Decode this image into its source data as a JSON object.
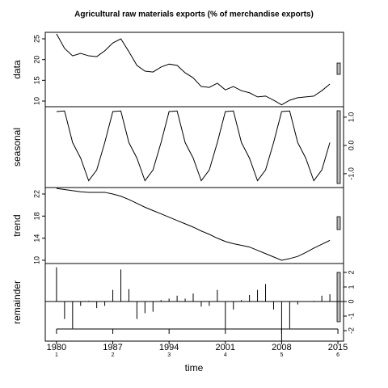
{
  "title": "Agricultural raw materials exports (% of merchandise exports)",
  "axis": {
    "xlabel": "time",
    "x": [
      1980,
      1981,
      1982,
      1983,
      1984,
      1985,
      1986,
      1987,
      1988,
      1989,
      1990,
      1991,
      1992,
      1993,
      1994,
      1995,
      1996,
      1997,
      1998,
      1999,
      2000,
      2001,
      2002,
      2003,
      2004,
      2005,
      2006,
      2007,
      2008,
      2009,
      2010,
      2011,
      2012,
      2013,
      2014
    ],
    "xlim": [
      1978.6,
      2015.7
    ],
    "xticks": [
      1980,
      1987,
      1994,
      2001,
      2008,
      2015
    ],
    "cycle_labels": [
      "1",
      "2",
      "3",
      "4",
      "5",
      "6"
    ]
  },
  "chart_data": [
    {
      "type": "line",
      "ylabel": "data",
      "side": "left",
      "ylim": [
        8.64,
        26.56
      ],
      "yticks": [
        10,
        15,
        20,
        25
      ],
      "values": [
        26.2,
        22.7,
        20.9,
        21.5,
        20.9,
        20.7,
        22.1,
        24.0,
        25.0,
        21.9,
        18.6,
        17.2,
        17.0,
        18.2,
        18.9,
        18.6,
        16.8,
        15.6,
        13.5,
        13.3,
        14.3,
        12.7,
        13.5,
        12.5,
        12.0,
        11.0,
        11.2,
        10.2,
        9.1,
        10.2,
        10.8,
        11.0,
        11.2,
        12.5,
        14.1
      ]
    },
    {
      "type": "line",
      "ylabel": "seasonal",
      "side": "right",
      "ylim": [
        -1.49,
        1.37
      ],
      "yticks": [
        {
          "value": -1,
          "label": "-1.0"
        },
        {
          "value": 0,
          "label": "0.0"
        },
        {
          "value": 1,
          "label": "1.0"
        }
      ],
      "values": [
        1.2,
        1.22,
        0.1,
        -0.45,
        -1.25,
        -0.87,
        0.1,
        1.2,
        1.22,
        0.1,
        -0.45,
        -1.25,
        -0.87,
        0.1,
        1.2,
        1.22,
        0.1,
        -0.45,
        -1.25,
        -0.87,
        0.1,
        1.2,
        1.22,
        0.1,
        -0.45,
        -1.25,
        -0.87,
        0.1,
        1.2,
        1.22,
        0.1,
        -0.45,
        -1.25,
        -0.87,
        0.1
      ]
    },
    {
      "type": "line",
      "ylabel": "trend",
      "side": "left",
      "ylim": [
        9.41,
        23.17
      ],
      "yticks": [
        10,
        14,
        18,
        22
      ],
      "values": [
        23.0,
        22.8,
        22.6,
        22.4,
        22.3,
        22.3,
        22.3,
        22.0,
        21.6,
        21.0,
        20.3,
        19.6,
        19.0,
        18.4,
        17.8,
        17.2,
        16.6,
        16.0,
        15.3,
        14.7,
        14.0,
        13.4,
        13.0,
        12.7,
        12.4,
        11.8,
        11.2,
        10.6,
        10.0,
        10.3,
        10.7,
        11.4,
        12.2,
        12.9,
        13.6
      ]
    },
    {
      "type": "bar",
      "ylabel": "remainder",
      "side": "right",
      "ylim": [
        -2.72,
        2.61
      ],
      "yticks": [
        -2,
        -1,
        0,
        1,
        2
      ],
      "values": [
        2.35,
        -1.2,
        -1.85,
        -0.3,
        0.05,
        -0.45,
        -0.3,
        0.8,
        2.2,
        0.85,
        -1.2,
        -0.8,
        -0.7,
        0.1,
        0.2,
        0.4,
        0.2,
        0.55,
        -0.35,
        -0.3,
        0.8,
        -1.85,
        -0.55,
        0.1,
        0.45,
        0.8,
        1.2,
        -0.55,
        -2.7,
        -1.85,
        -0.2,
        0,
        0.05,
        0.4,
        0.5
      ]
    }
  ]
}
